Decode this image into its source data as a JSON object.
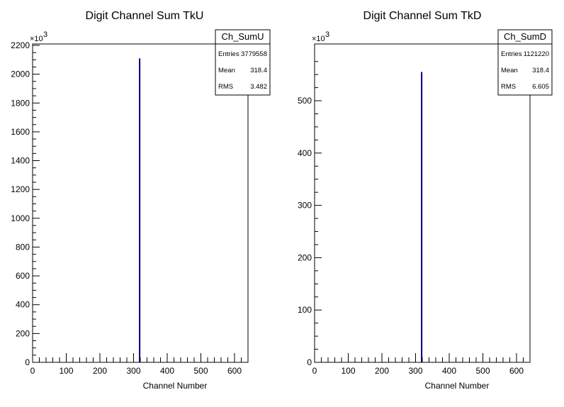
{
  "chart_data": [
    {
      "type": "bar",
      "title": "Digit Channel Sum TkU",
      "xlabel": "Channel Number",
      "ylabel": "",
      "y_multiplier_label": "×10",
      "y_multiplier_exponent": "3",
      "xlim": [
        0,
        640
      ],
      "ylim": [
        0,
        2200
      ],
      "x_ticks": [
        0,
        100,
        200,
        300,
        400,
        500,
        600
      ],
      "y_ticks": [
        0,
        200,
        400,
        600,
        800,
        1000,
        1200,
        1400,
        1600,
        1800,
        2000,
        2200
      ],
      "x_tick_labels": [
        "0",
        "100",
        "200",
        "300",
        "400",
        "500",
        "600"
      ],
      "y_tick_labels": [
        "0",
        "200",
        "400",
        "600",
        "800",
        "1000",
        "1200",
        "1400",
        "1600",
        "1800",
        "2000",
        "2200"
      ],
      "series": [
        {
          "bins": [
            {
              "x": 318,
              "value": 2110
            }
          ],
          "color": "#000080"
        }
      ],
      "stats": {
        "name": "Ch_SumU",
        "rows": [
          {
            "label": "Entries",
            "value": "3779558"
          },
          {
            "label": "Mean",
            "value": "318.4"
          },
          {
            "label": "RMS",
            "value": "3.482"
          }
        ]
      }
    },
    {
      "type": "bar",
      "title": "Digit Channel Sum TkD",
      "xlabel": "Channel Number",
      "ylabel": "",
      "y_multiplier_label": "×10",
      "y_multiplier_exponent": "3",
      "xlim": [
        0,
        640
      ],
      "ylim": [
        0,
        580
      ],
      "x_ticks": [
        0,
        100,
        200,
        300,
        400,
        500,
        600
      ],
      "y_ticks": [
        0,
        100,
        200,
        300,
        400,
        500
      ],
      "x_tick_labels": [
        "0",
        "100",
        "200",
        "300",
        "400",
        "500",
        "600"
      ],
      "y_tick_labels": [
        "0",
        "100",
        "200",
        "300",
        "400",
        "500"
      ],
      "series": [
        {
          "bins": [
            {
              "x": 318,
              "value": 555
            }
          ],
          "color": "#000080"
        }
      ],
      "stats": {
        "name": "Ch_SumD",
        "rows": [
          {
            "label": "Entries",
            "value": "1121220"
          },
          {
            "label": "Mean",
            "value": "318.4"
          },
          {
            "label": "RMS",
            "value": "6.605"
          }
        ]
      }
    }
  ]
}
